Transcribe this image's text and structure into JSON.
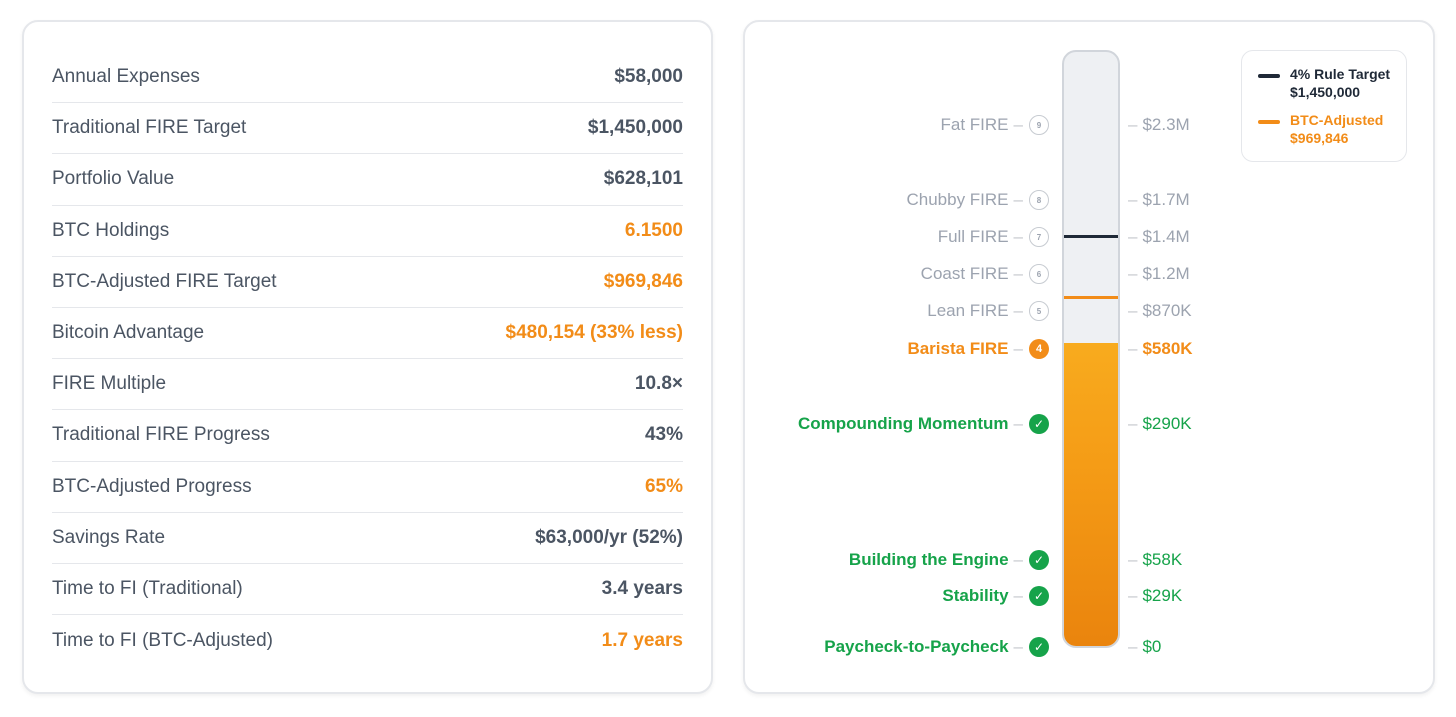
{
  "stats": [
    {
      "label": "Annual Expenses",
      "value": "$58,000",
      "highlight": false
    },
    {
      "label": "Traditional FIRE Target",
      "value": "$1,450,000",
      "highlight": false
    },
    {
      "label": "Portfolio Value",
      "value": "$628,101",
      "highlight": false
    },
    {
      "label": "BTC Holdings",
      "value": "6.1500",
      "highlight": true
    },
    {
      "label": "BTC-Adjusted FIRE Target",
      "value": "$969,846",
      "highlight": true
    },
    {
      "label": "Bitcoin Advantage",
      "value": "$480,154 (33% less)",
      "highlight": true
    },
    {
      "label": "FIRE Multiple",
      "value": "10.8×",
      "highlight": false
    },
    {
      "label": "Traditional FIRE Progress",
      "value": "43%",
      "highlight": false
    },
    {
      "label": "BTC-Adjusted Progress",
      "value": "65%",
      "highlight": true
    },
    {
      "label": "Savings Rate",
      "value": "$63,000/yr (52%)",
      "highlight": false
    },
    {
      "label": "Time to FI (Traditional)",
      "value": "3.4 years",
      "highlight": false
    },
    {
      "label": "Time to FI (BTC-Adjusted)",
      "value": "1.7 years",
      "highlight": true
    }
  ],
  "ladder": {
    "fill_fraction": 0.51,
    "levels": [
      {
        "name": "Fat FIRE",
        "amount": "$2.3M",
        "badge": "9",
        "status": "future"
      },
      {
        "name": "Chubby FIRE",
        "amount": "$1.7M",
        "badge": "8",
        "status": "future"
      },
      {
        "name": "Full FIRE",
        "amount": "$1.4M",
        "badge": "7",
        "status": "future"
      },
      {
        "name": "Coast FIRE",
        "amount": "$1.2M",
        "badge": "6",
        "status": "future"
      },
      {
        "name": "Lean FIRE",
        "amount": "$870K",
        "badge": "5",
        "status": "future"
      },
      {
        "name": "Barista FIRE",
        "amount": "$580K",
        "badge": "4",
        "status": "current"
      },
      {
        "name": "Compounding Momentum",
        "amount": "$290K",
        "badge": "✓",
        "status": "done"
      },
      {
        "name": "Building the Engine",
        "amount": "$58K",
        "badge": "✓",
        "status": "done"
      },
      {
        "name": "Stability",
        "amount": "$29K",
        "badge": "✓",
        "status": "done"
      },
      {
        "name": "Paycheck-to-Paycheck",
        "amount": "$0",
        "badge": "✓",
        "status": "done"
      }
    ],
    "dash": "–"
  },
  "legend": {
    "traditional": {
      "title": "4% Rule Target",
      "value": "$1,450,000",
      "color": "#1f2937"
    },
    "btc": {
      "title": "BTC-Adjusted",
      "value": "$969,846",
      "color": "#f28c18"
    }
  },
  "colors": {
    "orange": "#f28c18",
    "green": "#16a34a",
    "gray": "#9ca3af"
  }
}
